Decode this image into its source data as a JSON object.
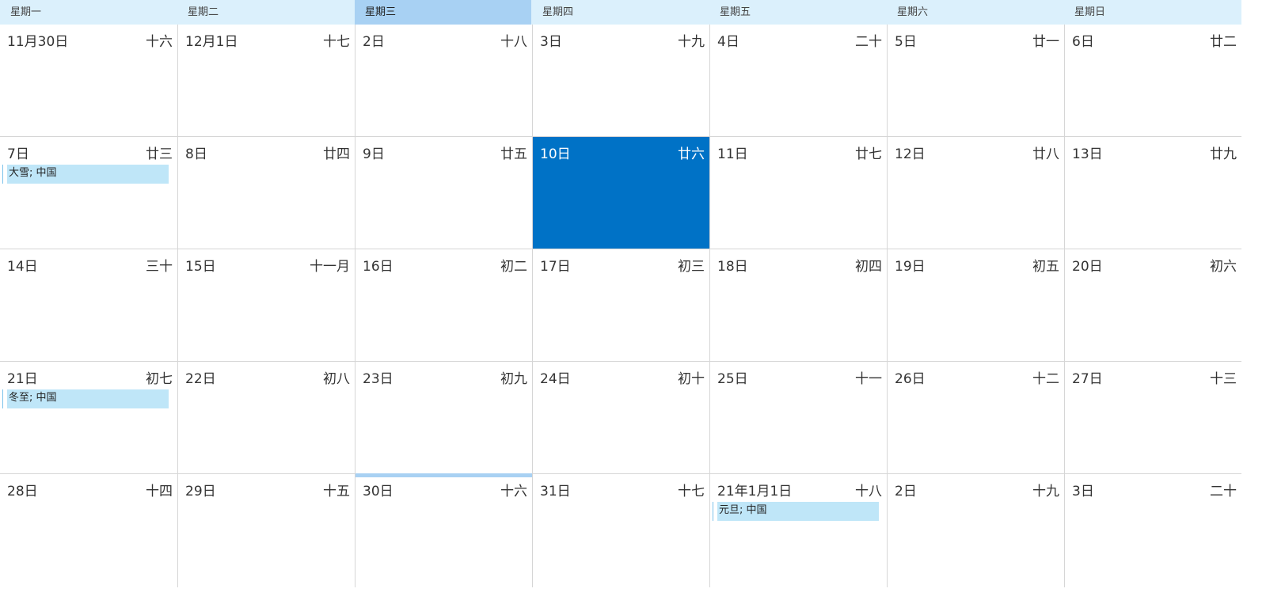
{
  "weekdays": [
    {
      "label": "星期一",
      "selected": false
    },
    {
      "label": "星期二",
      "selected": false
    },
    {
      "label": "星期三",
      "selected": true
    },
    {
      "label": "星期四",
      "selected": false
    },
    {
      "label": "星期五",
      "selected": false
    },
    {
      "label": "星期六",
      "selected": false
    },
    {
      "label": "星期日",
      "selected": false
    }
  ],
  "weeks": [
    [
      {
        "day": "11月30日",
        "lunar": "十六"
      },
      {
        "day": "12月1日",
        "lunar": "十七"
      },
      {
        "day": "2日",
        "lunar": "十八"
      },
      {
        "day": "3日",
        "lunar": "十九"
      },
      {
        "day": "4日",
        "lunar": "二十"
      },
      {
        "day": "5日",
        "lunar": "廿一"
      },
      {
        "day": "6日",
        "lunar": "廿二"
      }
    ],
    [
      {
        "day": "7日",
        "lunar": "廿三",
        "event": "大雪; 中国"
      },
      {
        "day": "8日",
        "lunar": "廿四"
      },
      {
        "day": "9日",
        "lunar": "廿五"
      },
      {
        "day": "10日",
        "lunar": "廿六",
        "today": true
      },
      {
        "day": "11日",
        "lunar": "廿七"
      },
      {
        "day": "12日",
        "lunar": "廿八"
      },
      {
        "day": "13日",
        "lunar": "廿九"
      }
    ],
    [
      {
        "day": "14日",
        "lunar": "三十"
      },
      {
        "day": "15日",
        "lunar": "十一月"
      },
      {
        "day": "16日",
        "lunar": "初二"
      },
      {
        "day": "17日",
        "lunar": "初三"
      },
      {
        "day": "18日",
        "lunar": "初四"
      },
      {
        "day": "19日",
        "lunar": "初五"
      },
      {
        "day": "20日",
        "lunar": "初六"
      }
    ],
    [
      {
        "day": "21日",
        "lunar": "初七",
        "event": "冬至; 中国"
      },
      {
        "day": "22日",
        "lunar": "初八"
      },
      {
        "day": "23日",
        "lunar": "初九"
      },
      {
        "day": "24日",
        "lunar": "初十"
      },
      {
        "day": "25日",
        "lunar": "十一"
      },
      {
        "day": "26日",
        "lunar": "十二"
      },
      {
        "day": "27日",
        "lunar": "十三"
      }
    ],
    [
      {
        "day": "28日",
        "lunar": "十四"
      },
      {
        "day": "29日",
        "lunar": "十五"
      },
      {
        "day": "30日",
        "lunar": "十六",
        "marked": true
      },
      {
        "day": "31日",
        "lunar": "十七"
      },
      {
        "day": "21年1月1日",
        "lunar": "十八",
        "event": "元旦; 中国"
      },
      {
        "day": "2日",
        "lunar": "十九"
      },
      {
        "day": "3日",
        "lunar": "二十"
      }
    ]
  ],
  "colors": {
    "header_bg": "#dbf0fc",
    "header_selected_bg": "#a8d1f3",
    "today_bg": "#0072c6",
    "event_bg": "#bfe6f8",
    "grid_line": "#d6d6d6"
  }
}
